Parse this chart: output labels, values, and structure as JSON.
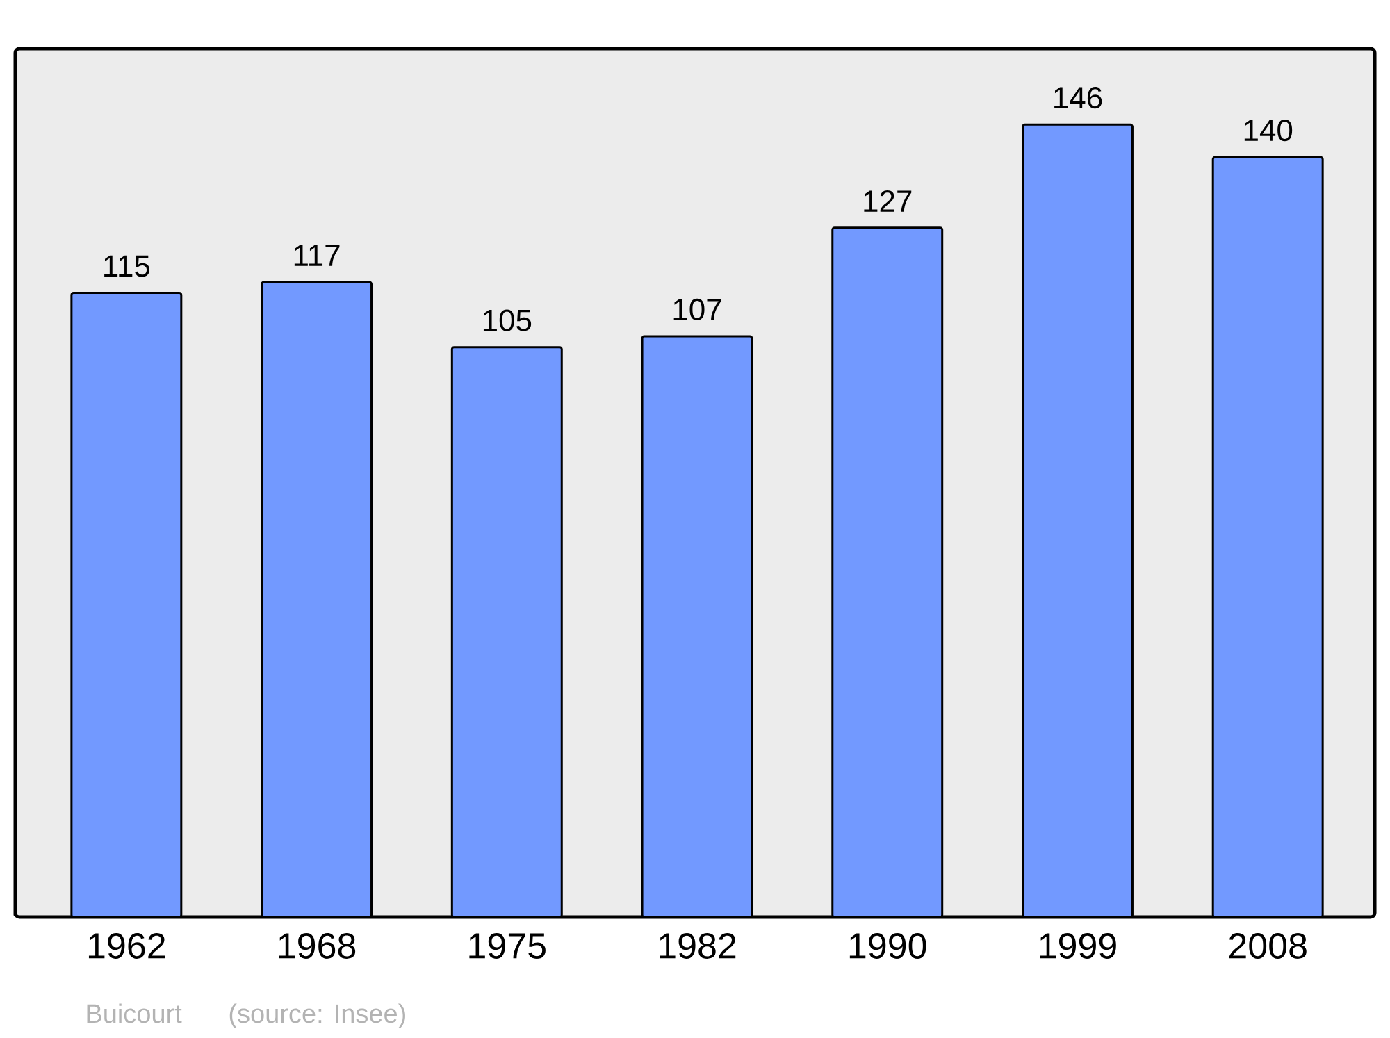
{
  "chart_data": {
    "type": "bar",
    "categories": [
      "1962",
      "1968",
      "1975",
      "1982",
      "1990",
      "1999",
      "2008"
    ],
    "values": [
      115,
      117,
      105,
      107,
      127,
      146,
      140
    ],
    "color": "#7299ff",
    "ylim": [
      0,
      160
    ],
    "data_labels": true,
    "tick_labels": "x",
    "annotations": [
      "Buicourt",
      "(source: Insee)"
    ]
  }
}
